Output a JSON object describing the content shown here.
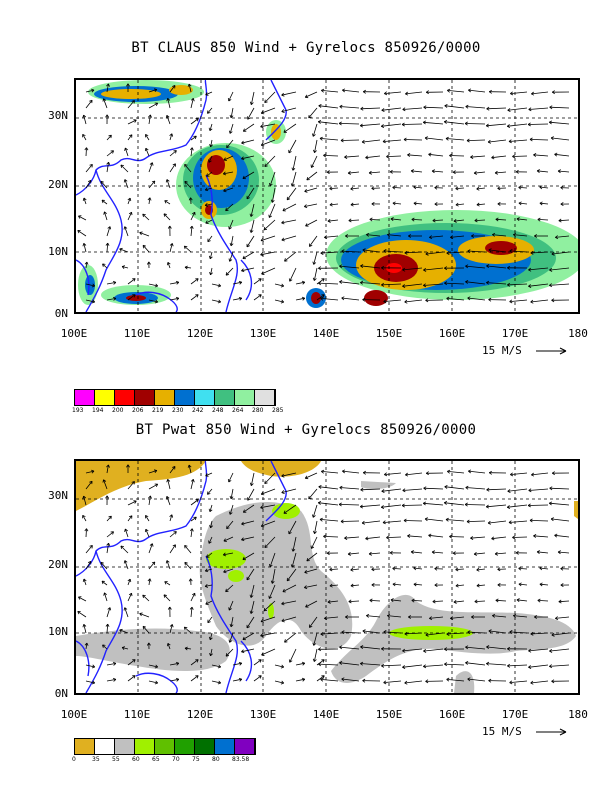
{
  "panel1": {
    "title": "BT CLAUS 850 Wind + Gyrelocs 850926/0000",
    "lat_labels": [
      "30N",
      "20N",
      "10N",
      "0N"
    ],
    "lon_labels": [
      "100E",
      "110E",
      "120E",
      "130E",
      "140E",
      "150E",
      "160E",
      "170E",
      "180"
    ],
    "scale_label": "15 M/S",
    "colorbar": {
      "colors": [
        "#ff00ff",
        "#ffff00",
        "#ff0000",
        "#a00000",
        "#e6b000",
        "#0070d0",
        "#40e0f0",
        "#40c080",
        "#90f0a0",
        "#e0e0e0"
      ],
      "ticks": [
        "193",
        "194",
        "200",
        "206",
        "219",
        "230",
        "242",
        "248",
        "264",
        "280",
        "285"
      ]
    }
  },
  "panel2": {
    "title": "BT Pwat 850 Wind + Gyrelocs 850926/0000",
    "lat_labels": [
      "30N",
      "20N",
      "10N",
      "0N"
    ],
    "lon_labels": [
      "100E",
      "110E",
      "120E",
      "130E",
      "140E",
      "150E",
      "160E",
      "170E",
      "180"
    ],
    "scale_label": "15 M/S",
    "colorbar": {
      "colors": [
        "#e0b020",
        "#ffffff",
        "#c0c0c0",
        "#a0f000",
        "#60c000",
        "#20a000",
        "#007000",
        "#0070d0",
        "#8000c0"
      ],
      "ticks": [
        "0",
        "35",
        "55",
        "60",
        "65",
        "70",
        "75",
        "80",
        "83.58"
      ]
    }
  }
}
